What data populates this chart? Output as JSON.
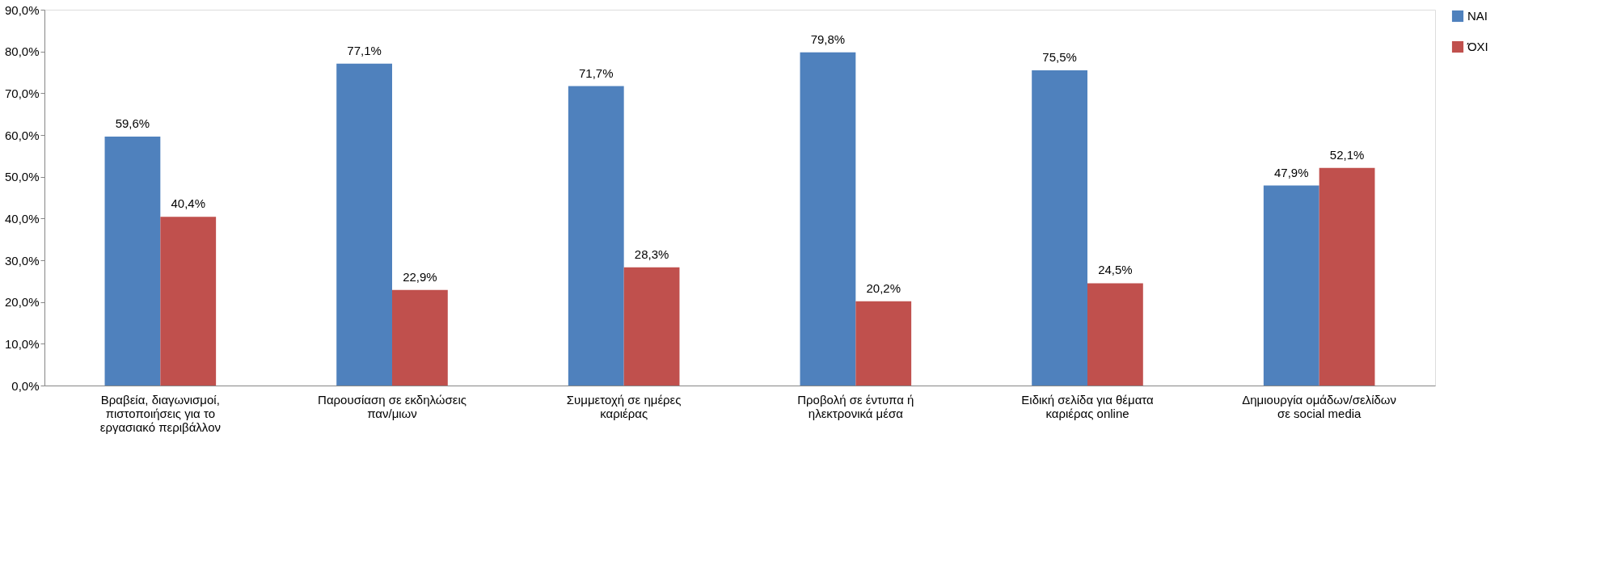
{
  "chart_data": {
    "type": "bar",
    "categories": [
      "Βραβεία, διαγωνισμοί, πιστοποιήσεις για το εργασιακό περιβάλλον",
      "Παρουσίαση σε εκδηλώσεις παν/μιων",
      "Συμμετοχή σε ημέρες καριέρας",
      "Προβολή σε έντυπα ή ηλεκτρονικά μέσα",
      "Ειδική σελίδα για θέματα καριέρας online",
      "Δημιουργία ομάδων/σελίδων σε social media"
    ],
    "series": [
      {
        "name": "ΝΑΙ",
        "color": "#4f81bd",
        "values": [
          59.6,
          77.1,
          71.7,
          79.8,
          75.5,
          47.9
        ],
        "value_labels": [
          "59,6%",
          "77,1%",
          "71,7%",
          "79,8%",
          "75,5%",
          "47,9%"
        ]
      },
      {
        "name": "ΌΧΙ",
        "color": "#c0504d",
        "values": [
          40.4,
          22.9,
          28.3,
          20.2,
          24.5,
          52.1
        ],
        "value_labels": [
          "40,4%",
          "22,9%",
          "28,3%",
          "20,2%",
          "24,5%",
          "52,1%"
        ]
      }
    ],
    "ylim": [
      0,
      90
    ],
    "yticks": [
      {
        "value": 0,
        "label": "0,0%"
      },
      {
        "value": 10,
        "label": "10,0%"
      },
      {
        "value": 20,
        "label": "20,0%"
      },
      {
        "value": 30,
        "label": "30,0%"
      },
      {
        "value": 40,
        "label": "40,0%"
      },
      {
        "value": 50,
        "label": "50,0%"
      },
      {
        "value": 60,
        "label": "60,0%"
      },
      {
        "value": 70,
        "label": "70,0%"
      },
      {
        "value": 80,
        "label": "80,0%"
      },
      {
        "value": 90,
        "label": "90,0%"
      }
    ],
    "grid": false,
    "legend": "right"
  }
}
